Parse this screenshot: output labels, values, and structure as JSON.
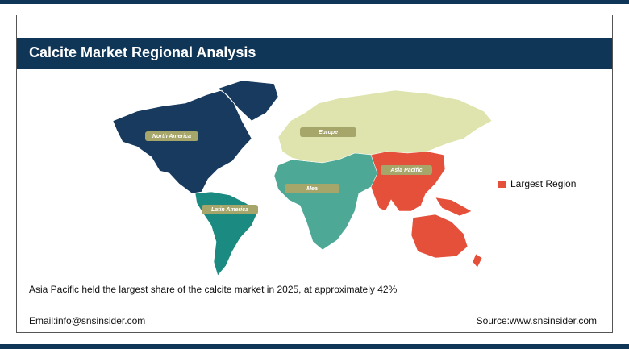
{
  "header": {
    "title": "Calcite Market Regional Analysis"
  },
  "map": {
    "regions": [
      {
        "label": "North America",
        "color": "#173a5e"
      },
      {
        "label": "Europe",
        "color": "#dfe4ae"
      },
      {
        "label": "Asia Pacific",
        "color": "#e5503b"
      },
      {
        "label": "Mea",
        "color": "#4da996"
      },
      {
        "label": "Latin America",
        "color": "#1b8a80"
      }
    ]
  },
  "legend": {
    "label": "Largest Region",
    "color": "#e5503b"
  },
  "footnote": "Asia Pacific held the largest share of the calcite market in 2025, at approximately 42%",
  "footer": {
    "email": "Email:info@snsinsider.com",
    "source": "Source:www.snsinsider.com"
  }
}
